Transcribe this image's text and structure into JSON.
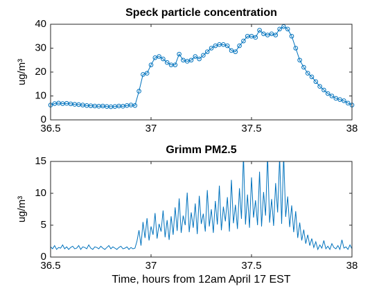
{
  "chart_data": [
    {
      "type": "line",
      "title": "Speck particle concentration",
      "ylabel": "ug/m³",
      "markers": true,
      "xlim": [
        36.5,
        38
      ],
      "xticks": [
        36.5,
        37,
        37.5,
        38
      ],
      "ylim": [
        0,
        40
      ],
      "yticks": [
        0,
        10,
        20,
        30,
        40
      ],
      "series": [
        {
          "color": "#0072bd",
          "x": [
            36.5,
            36.52,
            36.54,
            36.56,
            36.58,
            36.6,
            36.62,
            36.64,
            36.66,
            36.68,
            36.7,
            36.72,
            36.74,
            36.76,
            36.78,
            36.8,
            36.82,
            36.84,
            36.86,
            36.88,
            36.9,
            36.92,
            36.94,
            36.96,
            36.98,
            37,
            37.02,
            37.04,
            37.06,
            37.08,
            37.1,
            37.12,
            37.14,
            37.16,
            37.18,
            37.2,
            37.22,
            37.24,
            37.26,
            37.28,
            37.3,
            37.32,
            37.34,
            37.36,
            37.38,
            37.4,
            37.42,
            37.44,
            37.46,
            37.48,
            37.5,
            37.52,
            37.54,
            37.56,
            37.58,
            37.6,
            37.62,
            37.64,
            37.66,
            37.68,
            37.7,
            37.72,
            37.74,
            37.76,
            37.78,
            37.8,
            37.82,
            37.84,
            37.86,
            37.88,
            37.9,
            37.92,
            37.94,
            37.96,
            37.98,
            38
          ],
          "values": [
            6.2,
            6.8,
            7.0,
            6.8,
            6.9,
            6.7,
            6.5,
            6.4,
            6.2,
            6.0,
            5.9,
            5.8,
            5.7,
            5.8,
            5.6,
            5.5,
            5.6,
            5.8,
            5.7,
            6.0,
            6.2,
            6.0,
            12,
            19,
            19.5,
            23,
            26,
            26.5,
            25.5,
            24,
            23,
            23,
            27.5,
            25,
            24.5,
            25,
            26.5,
            25.5,
            27,
            28.5,
            30,
            31,
            31.5,
            31.5,
            31,
            29,
            28.5,
            31,
            33,
            35,
            35,
            34.5,
            37.5,
            36,
            35.5,
            36,
            35.5,
            38,
            39,
            38,
            35,
            30,
            25,
            22,
            19.5,
            18,
            16,
            14,
            12.5,
            11,
            10,
            9,
            8.5,
            8,
            7,
            6.2
          ]
        }
      ]
    },
    {
      "type": "line",
      "title": "Grimm PM2.5",
      "ylabel": "ug/m³",
      "xlabel": "Time, hours from 12am April 17 EST",
      "markers": false,
      "xlim": [
        36.5,
        38
      ],
      "xticks": [
        36.5,
        37,
        37.5,
        38
      ],
      "ylim": [
        0,
        15
      ],
      "yticks": [
        0,
        5,
        10,
        15
      ],
      "series": [
        {
          "color": "#0072bd",
          "x": [
            36.5,
            36.51,
            36.52,
            36.53,
            36.54,
            36.55,
            36.56,
            36.57,
            36.58,
            36.59,
            36.6,
            36.61,
            36.62,
            36.63,
            36.64,
            36.65,
            36.66,
            36.67,
            36.68,
            36.69,
            36.7,
            36.71,
            36.72,
            36.73,
            36.74,
            36.75,
            36.76,
            36.77,
            36.78,
            36.79,
            36.8,
            36.81,
            36.82,
            36.83,
            36.84,
            36.85,
            36.86,
            36.87,
            36.88,
            36.89,
            36.9,
            36.91,
            36.92,
            36.93,
            36.94,
            36.95,
            36.96,
            36.97,
            36.98,
            36.99,
            37,
            37.01,
            37.02,
            37.03,
            37.04,
            37.05,
            37.06,
            37.07,
            37.08,
            37.09,
            37.1,
            37.11,
            37.12,
            37.13,
            37.14,
            37.15,
            37.16,
            37.17,
            37.18,
            37.19,
            37.2,
            37.21,
            37.22,
            37.23,
            37.24,
            37.25,
            37.26,
            37.27,
            37.28,
            37.29,
            37.3,
            37.31,
            37.32,
            37.33,
            37.34,
            37.35,
            37.36,
            37.37,
            37.38,
            37.39,
            37.4,
            37.41,
            37.42,
            37.43,
            37.44,
            37.45,
            37.46,
            37.47,
            37.48,
            37.49,
            37.5,
            37.51,
            37.52,
            37.53,
            37.54,
            37.55,
            37.56,
            37.57,
            37.58,
            37.59,
            37.6,
            37.61,
            37.62,
            37.63,
            37.64,
            37.65,
            37.66,
            37.67,
            37.68,
            37.69,
            37.7,
            37.71,
            37.72,
            37.73,
            37.74,
            37.75,
            37.76,
            37.77,
            37.78,
            37.79,
            37.8,
            37.81,
            37.82,
            37.83,
            37.84,
            37.85,
            37.86,
            37.87,
            37.88,
            37.89,
            37.9,
            37.91,
            37.92,
            37.93,
            37.94,
            37.95,
            37.96,
            37.97,
            37.98,
            37.99,
            38
          ],
          "values": [
            1.6,
            1.3,
            1.8,
            1.2,
            1.5,
            1.4,
            1.9,
            1.3,
            1.6,
            1.2,
            1.5,
            1.7,
            1.3,
            1.4,
            1.8,
            1.2,
            1.6,
            1.5,
            1.3,
            1.9,
            1.4,
            1.2,
            1.6,
            1.5,
            1.3,
            1.7,
            1.4,
            1.2,
            1.5,
            1.8,
            1.3,
            1.6,
            1.4,
            1.2,
            1.5,
            1.7,
            1.3,
            1.4,
            1.6,
            1.2,
            1.5,
            1.3,
            1.4,
            2.5,
            4.2,
            1.8,
            5.5,
            3.0,
            6.1,
            2.6,
            4.8,
            3.5,
            6.9,
            2.9,
            5.2,
            4.0,
            7.3,
            3.1,
            5.8,
            2.7,
            6.4,
            3.5,
            7.8,
            4.1,
            9.2,
            3.8,
            6.5,
            5.0,
            10.1,
            3.9,
            7.0,
            4.6,
            8.4,
            3.6,
            9.6,
            5.2,
            6.8,
            4.0,
            10.5,
            4.8,
            7.5,
            3.8,
            8.8,
            5.1,
            11.2,
            4.2,
            7.9,
            5.6,
            9.4,
            4.0,
            12.1,
            5.3,
            8.2,
            4.4,
            10.8,
            6.0,
            16,
            5.1,
            9.8,
            4.6,
            12.5,
            6.2,
            8.9,
            5.0,
            13.4,
            4.8,
            10.2,
            6.5,
            16,
            5.4,
            9.1,
            4.9,
            11.6,
            7.0,
            15.8,
            5.2,
            16,
            6.3,
            9.5,
            4.7,
            8.1,
            3.9,
            7.2,
            3.0,
            5.4,
            2.6,
            4.3,
            2.1,
            3.5,
            1.8,
            2.9,
            1.5,
            2.4,
            1.2,
            1.9,
            1.4,
            2.6,
            1.3,
            1.7,
            1.2,
            2.1,
            1.5,
            1.3,
            1.8,
            1.2,
            2.7,
            1.4,
            1.6,
            1.2,
            1.9,
            1.3
          ]
        }
      ]
    }
  ]
}
